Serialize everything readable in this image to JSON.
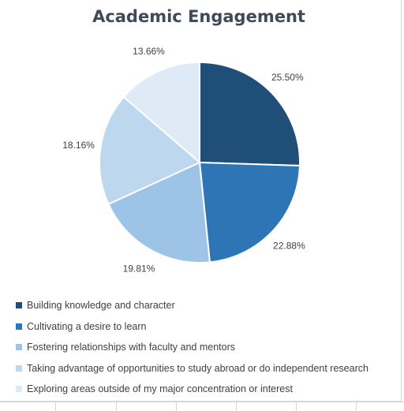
{
  "chart_data": {
    "type": "pie",
    "title": "Academic Engagement",
    "slices": [
      {
        "label": "Building knowledge and character",
        "value": 25.5,
        "display": "25.50%",
        "color": "#1f4e79"
      },
      {
        "label": "Cultivating a desire to learn",
        "value": 22.88,
        "display": "22.88%",
        "color": "#2e75b6"
      },
      {
        "label": "Fostering relationships with faculty and mentors",
        "value": 19.81,
        "display": "19.81%",
        "color": "#9dc3e6"
      },
      {
        "label": "Taking advantage of opportunities to study abroad or do independent research",
        "value": 18.16,
        "display": "18.16%",
        "color": "#bdd7ee"
      },
      {
        "label": "Exploring areas outside of my major concentration or interest",
        "value": 13.66,
        "display": "13.66%",
        "color": "#deebf7"
      }
    ],
    "start_angle_deg": 0,
    "direction": "clockwise",
    "legend_position": "bottom-left"
  }
}
